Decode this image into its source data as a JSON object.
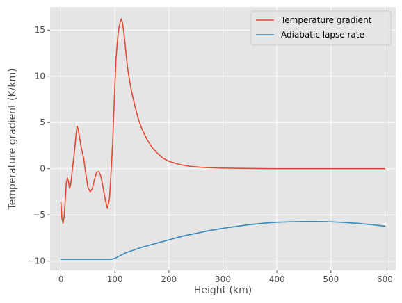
{
  "chart_data": {
    "type": "line",
    "xlabel": "Height (km)",
    "ylabel": "Temperature gradient (K/km)",
    "xlim": [
      -20,
      620
    ],
    "ylim": [
      -11,
      17.5
    ],
    "xticks": [
      0,
      100,
      200,
      300,
      400,
      500,
      600
    ],
    "yticks": [
      -10,
      -5,
      0,
      5,
      10,
      15
    ],
    "ytick_labels": [
      "−10",
      "−5",
      "0",
      "5",
      "10",
      "15"
    ],
    "grid": true,
    "legend_position": "top-right",
    "colors": {
      "background": "#e5e5e5",
      "grid": "#ffffff"
    },
    "series": [
      {
        "name": "Temperature gradient",
        "color": "#e24a33",
        "x": [
          0,
          2,
          4,
          6,
          8,
          10,
          12,
          14,
          16,
          18,
          20,
          22,
          25,
          28,
          30,
          32,
          35,
          38,
          42,
          46,
          50,
          54,
          58,
          62,
          66,
          70,
          74,
          78,
          82,
          86,
          90,
          92,
          94,
          96,
          98,
          100,
          102,
          104,
          106,
          108,
          110,
          112,
          114,
          116,
          118,
          120,
          122,
          124,
          127,
          130,
          135,
          140,
          145,
          150,
          160,
          170,
          180,
          190,
          200,
          220,
          240,
          260,
          280,
          300,
          320,
          340,
          360,
          380,
          400,
          450,
          500,
          550,
          600
        ],
        "y": [
          -3.6,
          -5.4,
          -5.9,
          -5.2,
          -3.5,
          -1.6,
          -1.0,
          -1.4,
          -2.1,
          -1.8,
          -0.8,
          0.3,
          1.8,
          3.6,
          4.6,
          4.3,
          3.2,
          2.2,
          1.2,
          -0.5,
          -2.0,
          -2.5,
          -2.2,
          -1.2,
          -0.4,
          -0.3,
          -0.8,
          -2.0,
          -3.3,
          -4.3,
          -3.2,
          -1.3,
          0.8,
          3.0,
          6.0,
          9.0,
          11.8,
          13.3,
          14.6,
          15.4,
          15.9,
          16.2,
          15.8,
          15.0,
          14.0,
          12.8,
          11.7,
          10.7,
          9.6,
          8.6,
          7.3,
          6.1,
          5.1,
          4.3,
          3.1,
          2.2,
          1.6,
          1.1,
          0.8,
          0.45,
          0.25,
          0.15,
          0.1,
          0.07,
          0.05,
          0.03,
          0.02,
          0.01,
          0.0,
          0.0,
          0.0,
          0.0,
          0.0
        ]
      },
      {
        "name": "Adiabatic lapse rate",
        "color": "#348abd",
        "x": [
          0,
          50,
          90,
          95,
          100,
          110,
          120,
          130,
          140,
          150,
          175,
          200,
          225,
          250,
          275,
          300,
          325,
          350,
          375,
          400,
          425,
          450,
          475,
          500,
          525,
          550,
          575,
          600
        ],
        "y": [
          -9.8,
          -9.8,
          -9.8,
          -9.78,
          -9.7,
          -9.4,
          -9.1,
          -8.9,
          -8.7,
          -8.5,
          -8.1,
          -7.7,
          -7.3,
          -7.0,
          -6.7,
          -6.45,
          -6.25,
          -6.05,
          -5.9,
          -5.8,
          -5.75,
          -5.72,
          -5.72,
          -5.75,
          -5.82,
          -5.92,
          -6.05,
          -6.22
        ]
      }
    ]
  }
}
